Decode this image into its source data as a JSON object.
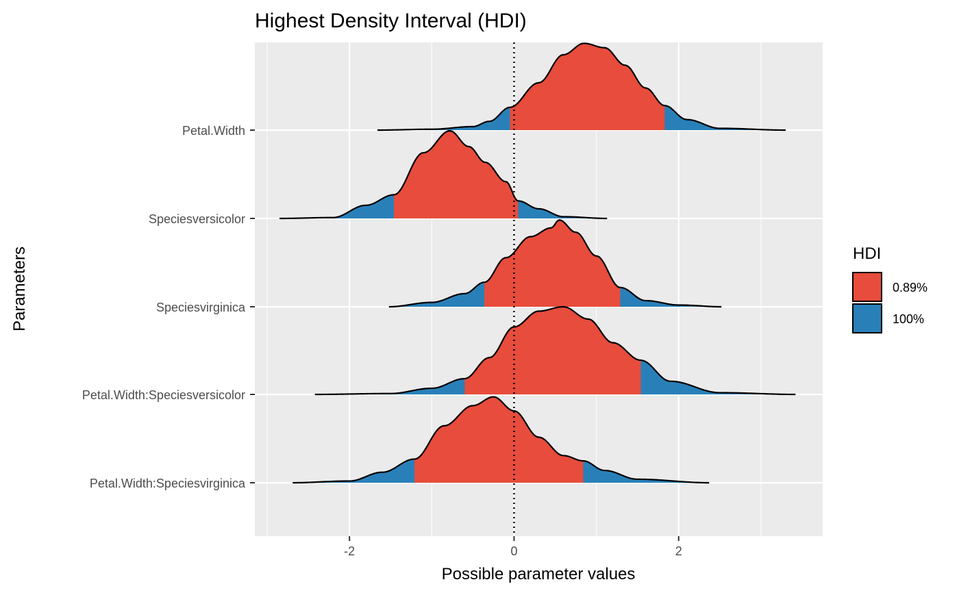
{
  "chart_data": {
    "type": "ridgeline-density",
    "title": "Highest Density Interval (HDI)",
    "xlabel": "Possible parameter values",
    "ylabel": "Parameters",
    "xlim": [
      -3.15,
      3.75
    ],
    "x_ticks": [
      -2,
      0,
      2
    ],
    "x_tick_labels": [
      "-2",
      "0",
      "2"
    ],
    "x_minor_ticks": [
      -3,
      -1,
      1,
      3
    ],
    "reference_line_x": 0,
    "grid": true,
    "legend": {
      "title": "HDI",
      "position": "right",
      "entries": [
        {
          "label": "0.89%",
          "color": "#e74c3c"
        },
        {
          "label": "100%",
          "color": "#2980b9"
        }
      ]
    },
    "series": [
      {
        "name": "Petal.Width",
        "hdi_89": [
          -0.05,
          1.83
        ],
        "hdi_100": [
          -1.66,
          3.3
        ],
        "density": [
          [
            -1.66,
            0.0
          ],
          [
            -1.0,
            0.01
          ],
          [
            -0.5,
            0.04
          ],
          [
            -0.3,
            0.1
          ],
          [
            -0.05,
            0.26
          ],
          [
            0.3,
            0.54
          ],
          [
            0.6,
            0.86
          ],
          [
            0.85,
            0.99
          ],
          [
            1.1,
            0.94
          ],
          [
            1.35,
            0.74
          ],
          [
            1.6,
            0.48
          ],
          [
            1.83,
            0.28
          ],
          [
            2.1,
            0.12
          ],
          [
            2.5,
            0.02
          ],
          [
            3.3,
            0.0
          ]
        ]
      },
      {
        "name": "Speciesversicolor",
        "hdi_89": [
          -1.46,
          0.05
        ],
        "hdi_100": [
          -2.85,
          1.13
        ],
        "density": [
          [
            -2.85,
            0.0
          ],
          [
            -2.2,
            0.01
          ],
          [
            -1.8,
            0.15
          ],
          [
            -1.46,
            0.27
          ],
          [
            -1.1,
            0.75
          ],
          [
            -0.78,
            1.0
          ],
          [
            -0.55,
            0.82
          ],
          [
            -0.35,
            0.64
          ],
          [
            -0.1,
            0.42
          ],
          [
            0.05,
            0.2
          ],
          [
            0.3,
            0.11
          ],
          [
            0.6,
            0.02
          ],
          [
            1.13,
            0.0
          ]
        ]
      },
      {
        "name": "Speciesvirginica",
        "hdi_89": [
          -0.36,
          1.29
        ],
        "hdi_100": [
          -1.52,
          2.52
        ],
        "density": [
          [
            -1.52,
            0.0
          ],
          [
            -1.0,
            0.05
          ],
          [
            -0.6,
            0.15
          ],
          [
            -0.36,
            0.28
          ],
          [
            -0.1,
            0.56
          ],
          [
            0.2,
            0.8
          ],
          [
            0.45,
            0.9
          ],
          [
            0.55,
            0.99
          ],
          [
            0.75,
            0.85
          ],
          [
            1.0,
            0.58
          ],
          [
            1.29,
            0.22
          ],
          [
            1.6,
            0.07
          ],
          [
            2.0,
            0.02
          ],
          [
            2.52,
            0.0
          ]
        ]
      },
      {
        "name": "Petal.Width:Speciesversicolor",
        "hdi_89": [
          -0.6,
          1.54
        ],
        "hdi_100": [
          -2.42,
          3.42
        ],
        "density": [
          [
            -2.42,
            0.0
          ],
          [
            -1.5,
            0.01
          ],
          [
            -1.0,
            0.07
          ],
          [
            -0.6,
            0.18
          ],
          [
            -0.3,
            0.42
          ],
          [
            0.0,
            0.77
          ],
          [
            0.3,
            0.95
          ],
          [
            0.6,
            1.0
          ],
          [
            0.9,
            0.86
          ],
          [
            1.2,
            0.59
          ],
          [
            1.54,
            0.39
          ],
          [
            1.9,
            0.15
          ],
          [
            2.5,
            0.02
          ],
          [
            3.42,
            0.0
          ]
        ]
      },
      {
        "name": "Petal.Width:Speciesvirginica",
        "hdi_89": [
          -1.21,
          0.84
        ],
        "hdi_100": [
          -2.69,
          2.37
        ],
        "density": [
          [
            -2.69,
            0.0
          ],
          [
            -2.0,
            0.02
          ],
          [
            -1.6,
            0.12
          ],
          [
            -1.21,
            0.27
          ],
          [
            -0.85,
            0.65
          ],
          [
            -0.5,
            0.88
          ],
          [
            -0.25,
            0.98
          ],
          [
            0.0,
            0.82
          ],
          [
            0.3,
            0.52
          ],
          [
            0.6,
            0.31
          ],
          [
            0.84,
            0.25
          ],
          [
            1.1,
            0.14
          ],
          [
            1.5,
            0.04
          ],
          [
            2.37,
            0.0
          ]
        ]
      }
    ]
  }
}
